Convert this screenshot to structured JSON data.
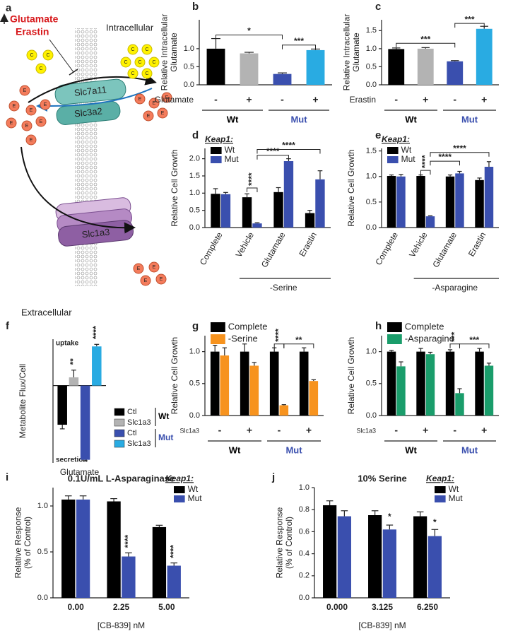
{
  "diagram": {
    "label": "a",
    "inhibitors": [
      "Glutamate",
      "Erastin"
    ],
    "intracellular": "Intracellular",
    "extracellular": "Extracellular",
    "transporters": [
      "Slc7a11",
      "Slc3a2",
      "Slc1a3"
    ],
    "cystine": "C",
    "glutamate": "E"
  },
  "chart_data": [
    {
      "type": "bar",
      "label": "b",
      "ylabel": [
        "Relative Intracellular",
        "Glutamate"
      ],
      "values": [
        1.0,
        0.87,
        0.3,
        0.96
      ],
      "errors": [
        0.28,
        0.03,
        0.03,
        0.03
      ],
      "colors": [
        "#000000",
        "#b3b3b3",
        "#3a4fae",
        "#29abe2"
      ],
      "ylim": [
        0,
        1.8
      ],
      "yticks": [
        {
          "value": 0,
          "label": "0.0"
        },
        {
          "value": 0.5,
          "label": "0.5"
        },
        {
          "value": 1,
          "label": "1.0"
        }
      ],
      "treatment": "Glutamate",
      "levels": [
        "-",
        "+",
        "-",
        "+"
      ],
      "groups": [
        "Wt",
        "Mut"
      ],
      "group_colors": [
        "#000000",
        "#3a4fae"
      ],
      "annotations": [
        "*",
        "***"
      ]
    },
    {
      "type": "bar",
      "label": "c",
      "ylabel": [
        "Relative Intracellular",
        "Glutamate"
      ],
      "values": [
        0.99,
        1.0,
        0.65,
        1.55
      ],
      "errors": [
        0.03,
        0.03,
        0.02,
        0.07
      ],
      "colors": [
        "#000000",
        "#b3b3b3",
        "#3a4fae",
        "#29abe2"
      ],
      "ylim": [
        0,
        1.8
      ],
      "yticks": [
        {
          "value": 0,
          "label": "0.0"
        },
        {
          "value": 0.5,
          "label": "0.5"
        },
        {
          "value": 1,
          "label": "1.0"
        },
        {
          "value": 1.5,
          "label": "1.5"
        }
      ],
      "treatment": "Erastin",
      "levels": [
        "-",
        "+",
        "-",
        "+"
      ],
      "groups": [
        "Wt",
        "Mut"
      ],
      "group_colors": [
        "#000000",
        "#3a4fae"
      ],
      "annotations": [
        "***",
        "***"
      ]
    },
    {
      "type": "bar",
      "label": "d",
      "ylabel": "Relative Cell Growth",
      "categories": [
        "Complete",
        "Vehicle",
        "Glutamate",
        "Erastin"
      ],
      "series": [
        {
          "name": "Wt",
          "color": "#000000",
          "values": [
            0.98,
            0.88,
            1.03,
            0.42
          ],
          "errors": [
            0.15,
            0.1,
            0.13,
            0.08
          ]
        },
        {
          "name": "Mut",
          "color": "#3a4fae",
          "values": [
            0.97,
            0.12,
            1.93,
            1.4
          ],
          "errors": [
            0.05,
            0.02,
            0.07,
            0.25
          ]
        }
      ],
      "legend_title": "Keap1:",
      "ylim": [
        0,
        2.3
      ],
      "yticks": [
        {
          "value": 0,
          "label": "0.0"
        },
        {
          "value": 0.5,
          "label": "0.5"
        },
        {
          "value": 1,
          "label": "1.0"
        },
        {
          "value": 1.5,
          "label": "1.5"
        },
        {
          "value": 2,
          "label": "2.0"
        }
      ],
      "group_label": "-Serine",
      "annotations": [
        "****",
        "****",
        "****"
      ]
    },
    {
      "type": "bar",
      "label": "e",
      "ylabel": "Relative Cell Growth",
      "categories": [
        "Complete",
        "Vehicle",
        "Glutamate",
        "Erastin"
      ],
      "series": [
        {
          "name": "Wt",
          "color": "#000000",
          "values": [
            1.01,
            1.01,
            1.0,
            0.93
          ],
          "errors": [
            0.02,
            0.02,
            0.03,
            0.04
          ]
        },
        {
          "name": "Mut",
          "color": "#3a4fae",
          "values": [
            1.0,
            0.22,
            1.06,
            1.19
          ],
          "errors": [
            0.04,
            0.01,
            0.04,
            0.1
          ]
        }
      ],
      "legend_title": "Keap1:",
      "ylim": [
        0,
        1.55
      ],
      "yticks": [
        {
          "value": 0,
          "label": "0.0"
        },
        {
          "value": 0.5,
          "label": "0.5"
        },
        {
          "value": 1,
          "label": "1.0"
        },
        {
          "value": 1.5,
          "label": "1.5"
        }
      ],
      "group_label": "-Asparagine",
      "annotations": [
        "****",
        "****",
        "****"
      ]
    },
    {
      "type": "bar",
      "label": "f",
      "ylabel": "Metabolite Flux/Cell",
      "top_label": "uptake",
      "bottom_label": "secretion",
      "categories": [
        "Glutamate"
      ],
      "series": [
        {
          "name": "Ctl",
          "color": "#000000",
          "values": [
            -3.8
          ],
          "errors": [
            0.4
          ]
        },
        {
          "name": "Slc1a3",
          "color": "#b3b3b3",
          "values": [
            0.8
          ],
          "errors": [
            0.7
          ]
        },
        {
          "name": "Ctl",
          "color": "#3a4fae",
          "values": [
            -7.2
          ],
          "errors": [
            0.1
          ]
        },
        {
          "name": "Slc1a3",
          "color": "#29abe2",
          "values": [
            3.8
          ],
          "errors": [
            0.2
          ]
        }
      ],
      "legend_groups": [
        "Wt",
        "Mut"
      ],
      "group_colors": [
        "#000000",
        "#3a4fae"
      ],
      "ylim": [
        -7.5,
        4.5
      ],
      "annotations": [
        "**",
        "****"
      ]
    },
    {
      "type": "bar",
      "label": "g",
      "ylabel": "Relative Cell Growth",
      "categories": [
        null,
        null,
        null,
        null
      ],
      "series": [
        {
          "name": "Complete",
          "color": "#000000",
          "values": [
            1.0,
            1.0,
            1.0,
            1.0
          ],
          "errors": [
            0.1,
            0.12,
            0.06,
            0.06
          ]
        },
        {
          "name": "-Serine",
          "color": "#f7931e",
          "values": [
            0.94,
            0.78,
            0.16,
            0.54
          ],
          "errors": [
            0.12,
            0.05,
            0.01,
            0.02
          ]
        }
      ],
      "ylim": [
        0,
        1.25
      ],
      "yticks": [
        {
          "value": 0,
          "label": "0.0"
        },
        {
          "value": 0.5,
          "label": "0.5"
        },
        {
          "value": 1,
          "label": "1.0"
        }
      ],
      "treatment": "Slc1a3",
      "levels": [
        "-",
        "+",
        "-",
        "+"
      ],
      "groups": [
        "Wt",
        "Mut"
      ],
      "group_colors": [
        "#000000",
        "#3a4fae"
      ],
      "annotations": [
        "****",
        "**"
      ]
    },
    {
      "type": "bar",
      "label": "h",
      "ylabel": "Relative Cell Growth",
      "categories": [
        null,
        null,
        null,
        null
      ],
      "series": [
        {
          "name": "Complete",
          "color": "#000000",
          "values": [
            1.0,
            1.0,
            1.0,
            1.0
          ],
          "errors": [
            0.02,
            0.05,
            0.03,
            0.05
          ]
        },
        {
          "name": "-Asparagine",
          "color": "#1a9d6b",
          "values": [
            0.77,
            0.96,
            0.35,
            0.78
          ],
          "errors": [
            0.07,
            0.03,
            0.07,
            0.04
          ]
        }
      ],
      "ylim": [
        0,
        1.25
      ],
      "yticks": [
        {
          "value": 0,
          "label": "0.0"
        },
        {
          "value": 0.5,
          "label": "0.5"
        },
        {
          "value": 1,
          "label": "1.0"
        }
      ],
      "treatment": "Slc1a3",
      "levels": [
        "-",
        "+",
        "-",
        "+"
      ],
      "groups": [
        "Wt",
        "Mut"
      ],
      "group_colors": [
        "#000000",
        "#3a4fae"
      ],
      "annotations": [
        "***",
        "***"
      ]
    },
    {
      "type": "bar",
      "label": "i",
      "title": "0.1U/mL L-Asparaginase",
      "ylabel": [
        "Relative Response",
        "(% of Control)"
      ],
      "xlabel": "[CB-839] nM",
      "categories": [
        "0.00",
        "2.25",
        "5.00"
      ],
      "series": [
        {
          "name": "Wt",
          "color": "#000000",
          "values": [
            1.07,
            1.05,
            0.77
          ],
          "errors": [
            0.04,
            0.03,
            0.02
          ]
        },
        {
          "name": "Mut",
          "color": "#3a4fae",
          "values": [
            1.07,
            0.45,
            0.35
          ],
          "errors": [
            0.04,
            0.04,
            0.03
          ]
        }
      ],
      "legend_title": "Keap1:",
      "ylim": [
        0,
        1.2
      ],
      "yticks": [
        {
          "value": 0,
          "label": "0.0"
        },
        {
          "value": 0.5,
          "label": "0.5"
        },
        {
          "value": 1,
          "label": "1.0"
        }
      ],
      "annotations": [
        "****",
        "****"
      ]
    },
    {
      "type": "bar",
      "label": "j",
      "title": "10% Serine",
      "ylabel": [
        "Relative Response",
        "(% of Control)"
      ],
      "xlabel": "[CB-839] nM",
      "categories": [
        "0.000",
        "3.125",
        "6.250"
      ],
      "series": [
        {
          "name": "Wt",
          "color": "#000000",
          "values": [
            0.84,
            0.75,
            0.74
          ],
          "errors": [
            0.04,
            0.04,
            0.04
          ]
        },
        {
          "name": "Mut",
          "color": "#3a4fae",
          "values": [
            0.74,
            0.62,
            0.56
          ],
          "errors": [
            0.05,
            0.04,
            0.06
          ]
        }
      ],
      "legend_title": "Keap1:",
      "ylim": [
        0,
        1.0
      ],
      "yticks": [
        {
          "value": 0,
          "label": "0.0"
        },
        {
          "value": 0.2,
          "label": "0.2"
        },
        {
          "value": 0.4,
          "label": "0.4"
        },
        {
          "value": 0.6,
          "label": "0.6"
        },
        {
          "value": 0.8,
          "label": "0.8"
        },
        {
          "value": 1,
          "label": "1.0"
        }
      ],
      "annotations": [
        "*",
        "*"
      ]
    }
  ]
}
